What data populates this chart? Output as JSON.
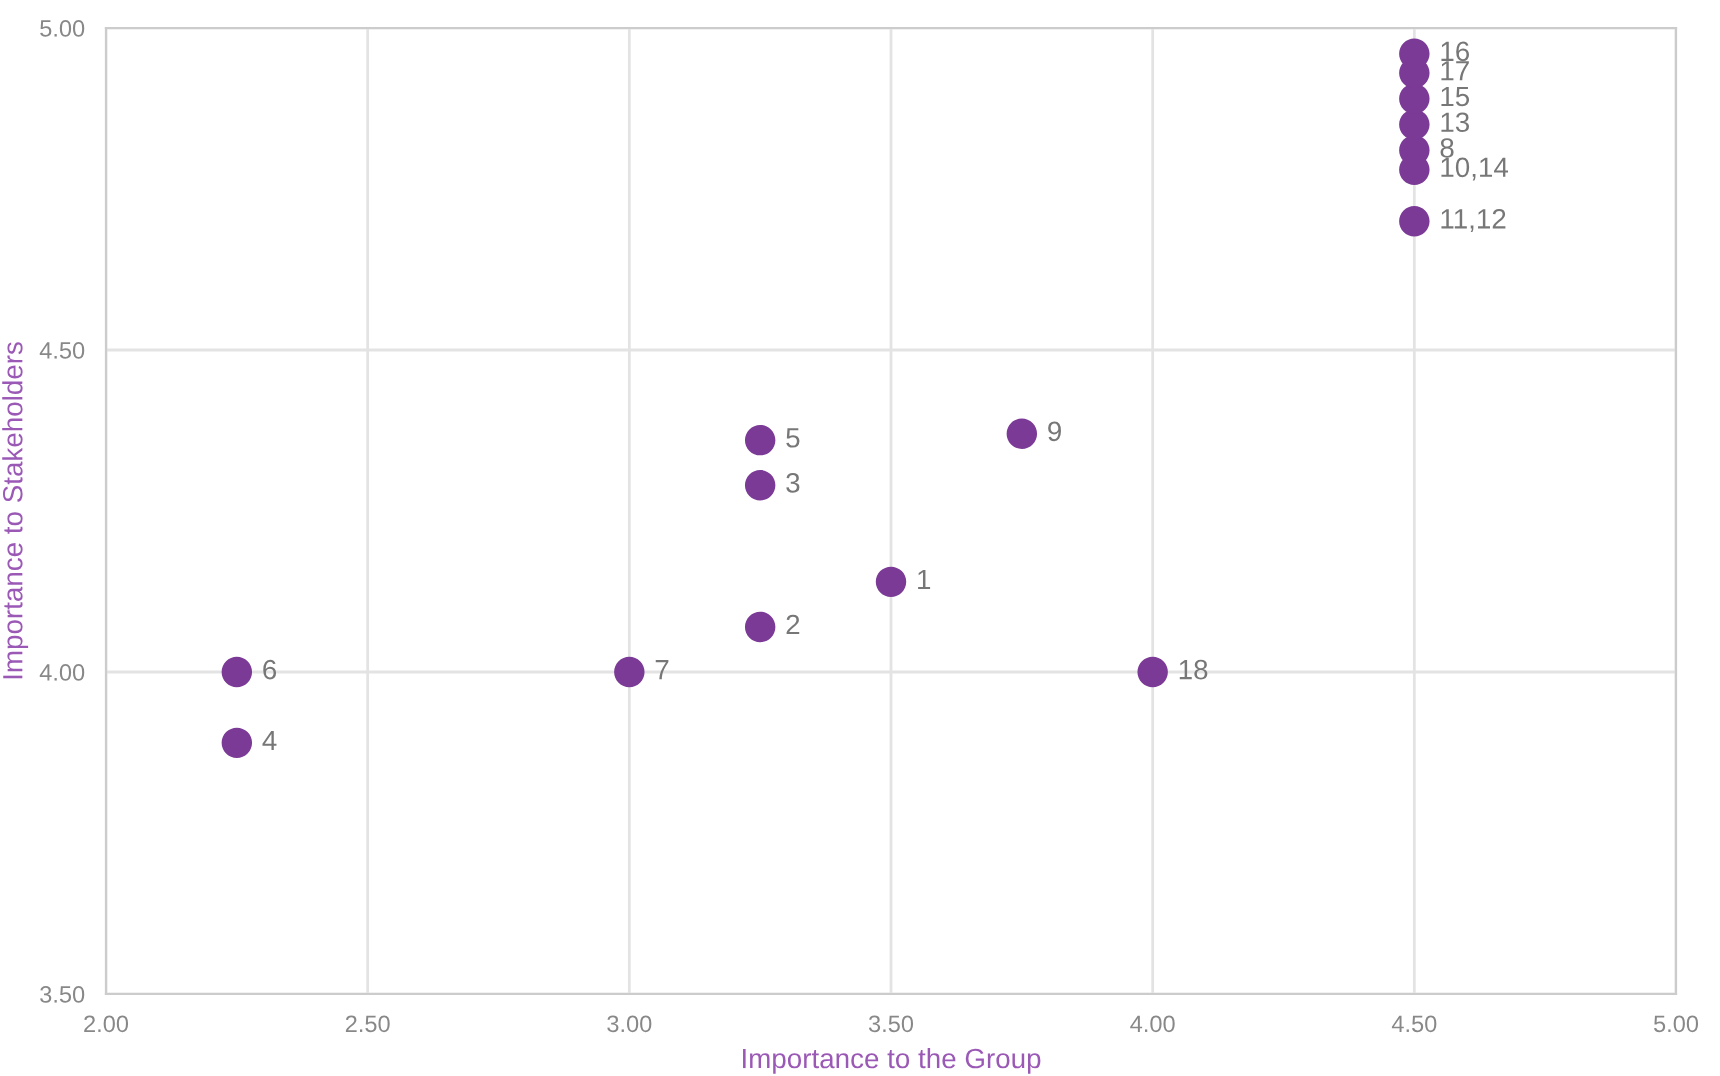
{
  "chart_data": {
    "type": "scatter",
    "xlabel": "Importance to the Group",
    "ylabel": "Importance to Stakeholders",
    "x": [
      3.5,
      3.25,
      3.25,
      2.25,
      3.25,
      2.25,
      3.0,
      4.5,
      3.75,
      4.5,
      4.5,
      4.5,
      4.5,
      4.5,
      4.0,
      4.5
    ],
    "series": [
      {
        "color": "#7b3a96",
        "values": [
          4.14,
          4.07,
          4.29,
          3.89,
          4.36,
          4.0,
          4.0,
          4.81,
          4.37,
          4.78,
          4.7,
          4.85,
          4.89,
          4.93,
          4.0,
          4.96
        ]
      }
    ],
    "annotations": [
      {
        "text": "1",
        "x": 3.5,
        "y": 4.14
      },
      {
        "text": "2",
        "x": 3.25,
        "y": 4.07
      },
      {
        "text": "3",
        "x": 3.25,
        "y": 4.29
      },
      {
        "text": "4",
        "x": 2.25,
        "y": 3.89
      },
      {
        "text": "5",
        "x": 3.25,
        "y": 4.36
      },
      {
        "text": "6",
        "x": 2.25,
        "y": 4.0
      },
      {
        "text": "7",
        "x": 3.0,
        "y": 4.0
      },
      {
        "text": "8",
        "x": 4.5,
        "y": 4.81
      },
      {
        "text": "9",
        "x": 3.75,
        "y": 4.37
      },
      {
        "text": "10,14",
        "x": 4.5,
        "y": 4.78
      },
      {
        "text": "11,12",
        "x": 4.5,
        "y": 4.7
      },
      {
        "text": "13",
        "x": 4.5,
        "y": 4.85
      },
      {
        "text": "15",
        "x": 4.5,
        "y": 4.89
      },
      {
        "text": "17",
        "x": 4.5,
        "y": 4.93
      },
      {
        "text": "18",
        "x": 4.0,
        "y": 4.0
      },
      {
        "text": "16",
        "x": 4.5,
        "y": 4.96
      }
    ],
    "xlim": [
      2.0,
      5.0
    ],
    "ylim": [
      3.5,
      5.0
    ],
    "xticks": [
      {
        "value": 2.0,
        "label": "2.00"
      },
      {
        "value": 2.5,
        "label": "2.50"
      },
      {
        "value": 3.0,
        "label": "3.00"
      },
      {
        "value": 3.5,
        "label": "3.50"
      },
      {
        "value": 4.0,
        "label": "4.00"
      },
      {
        "value": 4.5,
        "label": "4.50"
      },
      {
        "value": 5.0,
        "label": "5.00"
      }
    ],
    "yticks": [
      {
        "value": 3.5,
        "label": "3.50"
      },
      {
        "value": 4.0,
        "label": "4.00"
      },
      {
        "value": 4.5,
        "label": "4.50"
      },
      {
        "value": 5.0,
        "label": "5.00"
      }
    ],
    "grid": true,
    "marker": "circle",
    "legend": false
  }
}
